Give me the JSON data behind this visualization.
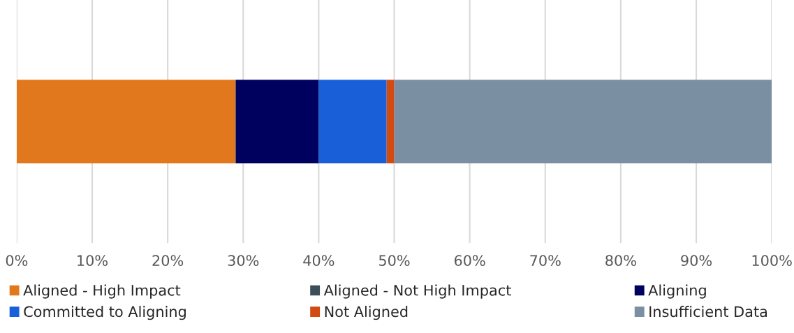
{
  "chart_data": {
    "type": "bar",
    "orientation": "horizontal",
    "stacked": true,
    "categories": [
      null
    ],
    "series": [
      {
        "name": "Aligned - High Impact",
        "color": "#e2781e",
        "values": [
          29
        ]
      },
      {
        "name": "Aligned - Not High Impact",
        "color": "#3c4f59",
        "values": [
          0
        ]
      },
      {
        "name": "Aligning",
        "color": "#00005e",
        "values": [
          11
        ]
      },
      {
        "name": "Committed to Aligning",
        "color": "#1960d8",
        "values": [
          9
        ]
      },
      {
        "name": "Not Aligned",
        "color": "#d24b10",
        "values": [
          1
        ]
      },
      {
        "name": "Insufficient Data",
        "color": "#7b8fa3",
        "values": [
          50
        ]
      }
    ],
    "xlim": [
      0,
      100
    ],
    "xticks": [
      {
        "value": 0,
        "label": "0%"
      },
      {
        "value": 10,
        "label": "10%"
      },
      {
        "value": 20,
        "label": "20%"
      },
      {
        "value": 30,
        "label": "30%"
      },
      {
        "value": 40,
        "label": "40%"
      },
      {
        "value": 50,
        "label": "50%"
      },
      {
        "value": 60,
        "label": "60%"
      },
      {
        "value": 70,
        "label": "70%"
      },
      {
        "value": 80,
        "label": "80%"
      },
      {
        "value": 90,
        "label": "90%"
      },
      {
        "value": 100,
        "label": "100%"
      }
    ],
    "tick_labels": "x",
    "grid": "x",
    "legend": "bottom"
  }
}
